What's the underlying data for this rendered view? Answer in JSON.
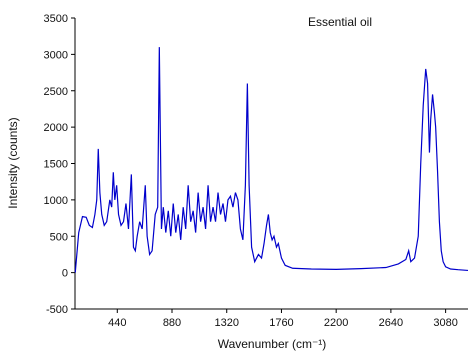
{
  "chart_data": {
    "type": "line",
    "annotation": "Essential oil",
    "xlabel": "Wavenumber (cm⁻¹)",
    "ylabel": "Intensity (counts)",
    "x": [
      102,
      130,
      160,
      190,
      215,
      240,
      260,
      275,
      287,
      300,
      315,
      335,
      355,
      380,
      395,
      408,
      420,
      435,
      450,
      470,
      490,
      510,
      530,
      553,
      570,
      585,
      600,
      620,
      640,
      665,
      680,
      700,
      720,
      745,
      765,
      778,
      795,
      810,
      830,
      850,
      870,
      890,
      910,
      930,
      950,
      970,
      990,
      1010,
      1030,
      1050,
      1070,
      1090,
      1110,
      1130,
      1150,
      1170,
      1190,
      1210,
      1230,
      1250,
      1270,
      1290,
      1310,
      1330,
      1350,
      1370,
      1390,
      1410,
      1430,
      1450,
      1470,
      1486,
      1500,
      1520,
      1545,
      1575,
      1600,
      1620,
      1640,
      1655,
      1670,
      1685,
      1700,
      1720,
      1735,
      1760,
      1790,
      1850,
      2000,
      2200,
      2400,
      2600,
      2700,
      2760,
      2783,
      2800,
      2830,
      2860,
      2880,
      2900,
      2920,
      2935,
      2950,
      2960,
      2975,
      2990,
      3000,
      3015,
      3030,
      3045,
      3060,
      3080,
      3120,
      3180,
      3260
    ],
    "series": [
      {
        "color": "#0000cc",
        "values": [
          0,
          550,
          770,
          760,
          650,
          620,
          800,
          1000,
          1700,
          1100,
          800,
          650,
          700,
          1000,
          900,
          1380,
          1000,
          1200,
          800,
          650,
          700,
          950,
          600,
          1350,
          350,
          300,
          500,
          700,
          600,
          1200,
          500,
          250,
          300,
          800,
          900,
          3100,
          600,
          900,
          550,
          850,
          500,
          950,
          550,
          800,
          450,
          900,
          600,
          1200,
          700,
          850,
          550,
          1100,
          700,
          900,
          600,
          1200,
          700,
          900,
          700,
          1100,
          800,
          950,
          700,
          1000,
          1050,
          900,
          1100,
          1000,
          600,
          450,
          1200,
          2600,
          1200,
          350,
          150,
          250,
          200,
          400,
          650,
          800,
          550,
          450,
          500,
          350,
          400,
          200,
          100,
          60,
          50,
          45,
          55,
          70,
          120,
          180,
          300,
          150,
          200,
          500,
          1500,
          2300,
          2800,
          2600,
          1650,
          2100,
          2450,
          2200,
          2000,
          1400,
          700,
          300,
          150,
          80,
          50,
          40,
          30
        ]
      }
    ],
    "xlim": [
      100,
      3260
    ],
    "ylim": [
      -500,
      3500
    ],
    "xticks": [
      440,
      880,
      1320,
      1760,
      2200,
      2640,
      3080
    ],
    "yticks": [
      -500,
      0,
      500,
      1000,
      1500,
      2000,
      2500,
      3000,
      3500
    ]
  }
}
